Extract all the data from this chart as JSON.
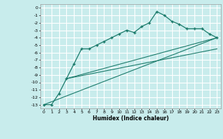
{
  "title": "",
  "xlabel": "Humidex (Indice chaleur)",
  "bg_color": "#c8ecec",
  "grid_color": "#ffffff",
  "line_color": "#1a7a6a",
  "xlim": [
    -0.5,
    23.5
  ],
  "ylim": [
    -13.5,
    0.5
  ],
  "xticks": [
    0,
    1,
    2,
    3,
    4,
    5,
    6,
    7,
    8,
    9,
    10,
    11,
    12,
    13,
    14,
    15,
    16,
    17,
    18,
    19,
    20,
    21,
    22,
    23
  ],
  "yticks": [
    0,
    -1,
    -2,
    -3,
    -4,
    -5,
    -6,
    -7,
    -8,
    -9,
    -10,
    -11,
    -12,
    -13
  ],
  "curve1_x": [
    0,
    1,
    2,
    3,
    4,
    5,
    6,
    7,
    8,
    9,
    10,
    11,
    12,
    13,
    14,
    15,
    16,
    17,
    18,
    19,
    20,
    21,
    22,
    23
  ],
  "curve1_y": [
    -13,
    -13,
    -11.5,
    -9.5,
    -7.5,
    -5.5,
    -5.5,
    -5.0,
    -4.5,
    -4.0,
    -3.5,
    -3.0,
    -3.3,
    -2.5,
    -2.0,
    -0.5,
    -1.0,
    -1.8,
    -2.2,
    -2.8,
    -2.8,
    -2.8,
    -3.5,
    -4.0
  ],
  "line2_x": [
    0,
    23
  ],
  "line2_y": [
    -13,
    -4.0
  ],
  "line3_x": [
    3,
    23
  ],
  "line3_y": [
    -9.5,
    -4.0
  ],
  "line4_x": [
    3,
    23
  ],
  "line4_y": [
    -9.5,
    -5.5
  ]
}
